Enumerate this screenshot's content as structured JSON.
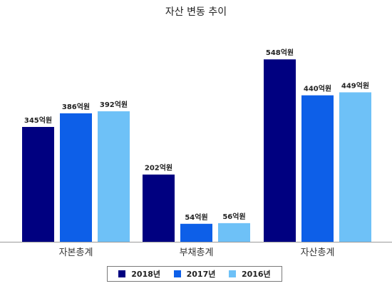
{
  "chart_data": {
    "type": "bar",
    "title": "자산 변동 추이",
    "categories": [
      "자본총계",
      "부채총계",
      "자산총계"
    ],
    "series": [
      {
        "name": "2018년",
        "color": "#000080",
        "values": [
          345,
          202,
          548
        ],
        "labels": [
          "345억원",
          "202억원",
          "548억원"
        ]
      },
      {
        "name": "2017년",
        "color": "#0d5fe8",
        "values": [
          386,
          54,
          440
        ],
        "labels": [
          "386억원",
          "54억원",
          "440억원"
        ]
      },
      {
        "name": "2016년",
        "color": "#6ec1f7",
        "values": [
          392,
          56,
          449
        ],
        "labels": [
          "392억원",
          "56억원",
          "449억원"
        ]
      }
    ],
    "ylim": [
      0,
      600
    ],
    "grid": false,
    "legend_position": "bottom"
  }
}
